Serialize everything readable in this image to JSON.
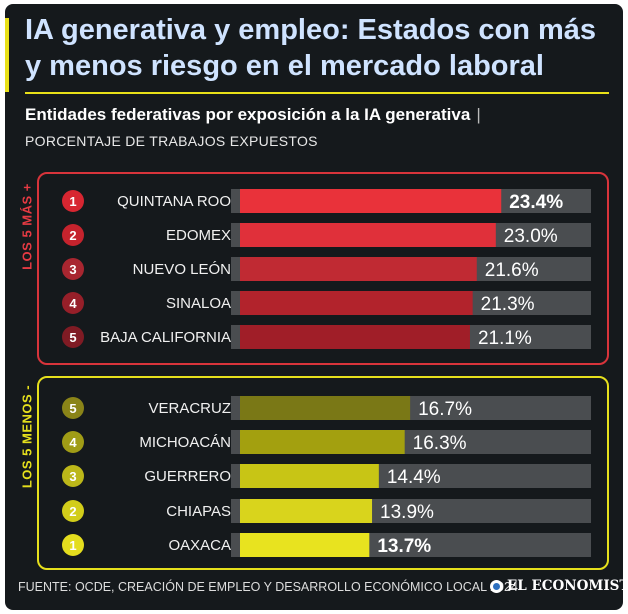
{
  "header": {
    "title": "IA generativa y empleo: Estados con más y menos riesgo en el mercado laboral",
    "subtitle": "Entidades federativas por exposición a la IA generativa",
    "subtitle_separator": "|",
    "unit_label": "PORCENTAJE DE TRABAJOS EXPUESTOS"
  },
  "groups": {
    "top_label": "LOS 5 MÁS +",
    "bottom_label": "LOS 5 MENOS -"
  },
  "footer": {
    "source": "FUENTE: OCDE, CREACIÓN DE EMPLEO Y DESARROLLO ECONÓMICO LOCAL 2024",
    "brand": "EL ECONOMISTA"
  },
  "chart_data": {
    "type": "bar",
    "orientation": "horizontal",
    "unit": "%",
    "xlim": [
      0,
      30
    ],
    "value_format": "decimal comma with % sign",
    "categories": [
      "QUINTANA ROO",
      "EDOMEX",
      "NUEVO LEÓN",
      "SINALOA",
      "BAJA CALIFORNIA",
      "VERACRUZ",
      "MICHOACÁN",
      "GUERRERO",
      "CHIAPAS",
      "OAXACA"
    ],
    "values": [
      23.4,
      23.0,
      21.6,
      21.3,
      21.1,
      16.7,
      16.3,
      14.4,
      13.9,
      13.7
    ],
    "ranks": [
      "1",
      "2",
      "3",
      "4",
      "5",
      "5",
      "4",
      "3",
      "2",
      "1"
    ],
    "value_labels": [
      "23.4%",
      "23.0%",
      "21.6%",
      "21.3%",
      "21.1%",
      "16.7%",
      "16.3%",
      "14.4%",
      "13.9%",
      "13.7%"
    ],
    "emphasized": [
      true,
      false,
      false,
      false,
      false,
      false,
      false,
      false,
      false,
      true
    ],
    "bar_colors": [
      "#e9323a",
      "#e0303a",
      "#c02a33",
      "#b2232c",
      "#a01e28",
      "#7a7816",
      "#a3a00f",
      "#c8c515",
      "#d9d41c",
      "#e8e31f"
    ],
    "badge_colors": [
      "#d72631",
      "#c5232d",
      "#a82630",
      "#961f29",
      "#801b24",
      "#8a8418",
      "#a09c16",
      "#bcb719",
      "#d2cd1a",
      "#e4dd1e"
    ],
    "track_color": "#4a4d50"
  }
}
